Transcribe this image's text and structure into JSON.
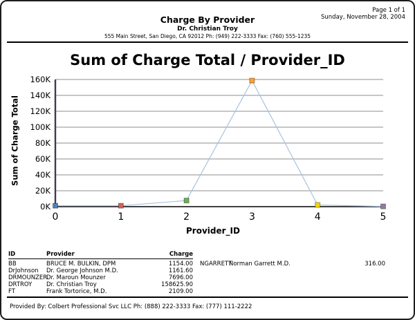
{
  "header": {
    "page_info": "Page 1 of 1",
    "date": "Sunday, November 28, 2004",
    "title": "Charge By Provider",
    "practice": "Dr. Christian Troy",
    "address": "555 Main Street, San Diego, CA 92012 Ph: (949) 222-3333 Fax: (760) 555-1235"
  },
  "chart_data": {
    "type": "line",
    "title": "Sum of Charge Total / Provider_ID",
    "xlabel": "Provider_ID",
    "ylabel": "Sum of Charge Total",
    "x": [
      0,
      1,
      2,
      3,
      4,
      5
    ],
    "values": [
      1154.0,
      1161.6,
      7696.0,
      158625.9,
      2109.0,
      316.0
    ],
    "xtick_labels": [
      "0",
      "1",
      "2",
      "3",
      "4",
      "5"
    ],
    "ytick_labels": [
      "0K",
      "20K",
      "40K",
      "60K",
      "80K",
      "100K",
      "120K",
      "140K",
      "160K"
    ],
    "ytick_step": 20000,
    "ylim": [
      0,
      160000
    ],
    "xlim": [
      0,
      5
    ],
    "grid": true,
    "legend": "none",
    "line_color": "#a9c2e1",
    "grid_color": "#8c8c8c",
    "axis_color": "#3c3c50",
    "marker_colors": [
      "#4f81bd",
      "#d5625d",
      "#6fae56",
      "#ffa02f",
      "#f2d600",
      "#9778a5"
    ]
  },
  "table": {
    "headers": [
      "ID",
      "Provider",
      "Charge"
    ],
    "left_rows": [
      {
        "id": "BB",
        "provider": "BRUCE M. BULKIN, DPM",
        "charge": "1154.00"
      },
      {
        "id": "DrJohnson",
        "provider": "Dr. George Johnson M.D.",
        "charge": "1161.60"
      },
      {
        "id": "DRMOUNZER",
        "provider": "Dr. Maroun Mounzer",
        "charge": "7696.00"
      },
      {
        "id": "DRTROY",
        "provider": "Dr. Christian Troy",
        "charge": "158625.90"
      },
      {
        "id": "FT",
        "provider": "Frank Tortorice, M.D.",
        "charge": "2109.00"
      }
    ],
    "right_rows": [
      {
        "id": "NGARRETT",
        "provider": "Norman Garrett M.D.",
        "charge": "316.00"
      }
    ]
  },
  "footer": {
    "text": "Provided By: Colbert Professional Svc LLC Ph: (888) 222-3333 Fax: (777) 111-2222"
  }
}
